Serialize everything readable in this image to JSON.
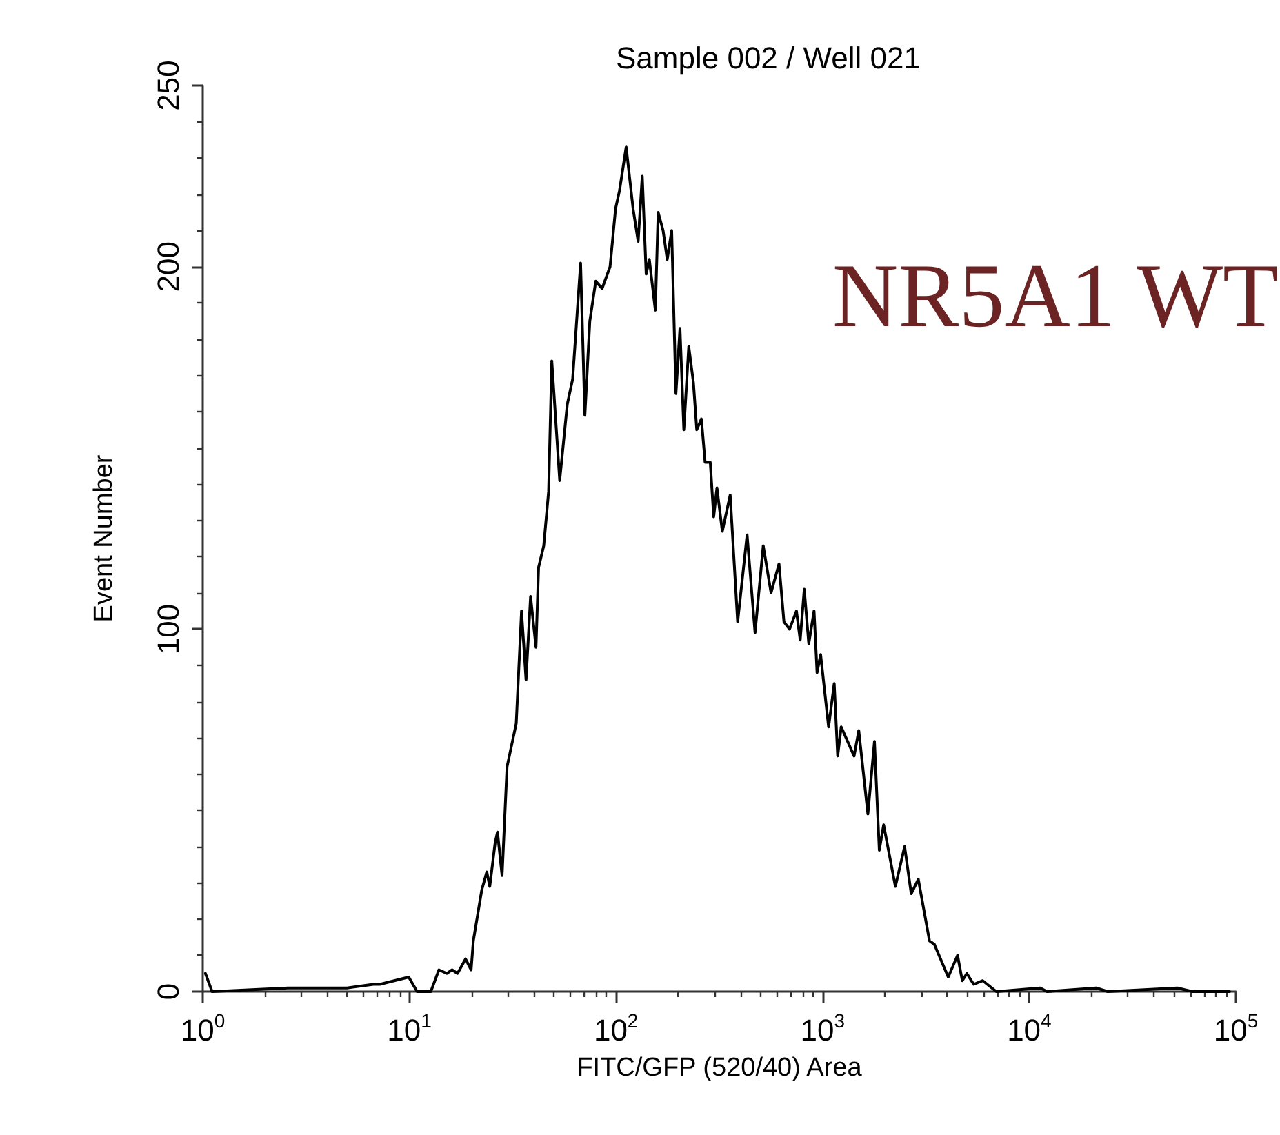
{
  "chart_data": {
    "type": "line",
    "title": "Sample 002 / Well 021",
    "xlabel": "FITC/GFP (520/40) Area",
    "ylabel": "Event Number",
    "annotations": [
      "NR5A1 WT"
    ],
    "log": "x",
    "grid": false,
    "xlim": [
      1,
      100000
    ],
    "ylim": [
      0,
      250
    ],
    "xticks": [
      {
        "value": 1,
        "label": "10$^{0}$"
      },
      {
        "value": 10,
        "label": "10$^{1}$"
      },
      {
        "value": 100,
        "label": "10$^{2}$"
      },
      {
        "value": 1000,
        "label": "10$^{3}$"
      },
      {
        "value": 10000,
        "label": "10$^{4}$"
      },
      {
        "value": 100000,
        "label": "10$^{5}$"
      },
      {
        "value": 2,
        "label": null
      },
      {
        "value": 3,
        "label": null
      },
      {
        "value": 4,
        "label": null
      },
      {
        "value": 5,
        "label": null
      },
      {
        "value": 6,
        "label": null
      },
      {
        "value": 7,
        "label": null
      },
      {
        "value": 8,
        "label": null
      },
      {
        "value": 9,
        "label": null
      },
      {
        "value": 20,
        "label": null
      },
      {
        "value": 30,
        "label": null
      },
      {
        "value": 40,
        "label": null
      },
      {
        "value": 50,
        "label": null
      },
      {
        "value": 60,
        "label": null
      },
      {
        "value": 70,
        "label": null
      },
      {
        "value": 80,
        "label": null
      },
      {
        "value": 90,
        "label": null
      },
      {
        "value": 200,
        "label": null
      },
      {
        "value": 300,
        "label": null
      },
      {
        "value": 400,
        "label": null
      },
      {
        "value": 500,
        "label": null
      },
      {
        "value": 600,
        "label": null
      },
      {
        "value": 700,
        "label": null
      },
      {
        "value": 800,
        "label": null
      },
      {
        "value": 900,
        "label": null
      },
      {
        "value": 2000,
        "label": null
      },
      {
        "value": 3000,
        "label": null
      },
      {
        "value": 4000,
        "label": null
      },
      {
        "value": 5000,
        "label": null
      },
      {
        "value": 6000,
        "label": null
      },
      {
        "value": 7000,
        "label": null
      },
      {
        "value": 8000,
        "label": null
      },
      {
        "value": 9000,
        "label": null
      },
      {
        "value": 20000,
        "label": null
      },
      {
        "value": 30000,
        "label": null
      },
      {
        "value": 40000,
        "label": null
      },
      {
        "value": 50000,
        "label": null
      },
      {
        "value": 60000,
        "label": null
      },
      {
        "value": 70000,
        "label": null
      },
      {
        "value": 80000,
        "label": null
      },
      {
        "value": 90000,
        "label": null
      }
    ],
    "yticks": [
      0,
      {
        "value": 10,
        "label": null
      },
      {
        "value": 20,
        "label": null
      },
      {
        "value": 30,
        "label": null
      },
      {
        "value": 40,
        "label": null
      },
      {
        "value": 50,
        "label": null
      },
      {
        "value": 60,
        "label": null
      },
      {
        "value": 70,
        "label": null
      },
      {
        "value": 80,
        "label": null
      },
      {
        "value": 90,
        "label": null
      },
      100,
      {
        "value": 110,
        "label": null
      },
      {
        "value": 120,
        "label": null
      },
      {
        "value": 130,
        "label": null
      },
      {
        "value": 140,
        "label": null
      },
      {
        "value": 150,
        "label": null
      },
      {
        "value": 160,
        "label": null
      },
      {
        "value": 170,
        "label": null
      },
      {
        "value": 180,
        "label": null
      },
      {
        "value": 190,
        "label": null
      },
      200,
      {
        "value": 210,
        "label": null
      },
      {
        "value": 220,
        "label": null
      },
      {
        "value": 230,
        "label": null
      },
      {
        "value": 240,
        "label": null
      },
      250
    ],
    "series": [
      {
        "color": "#000000",
        "x": [
          1.03,
          1.11,
          2.59,
          3.47,
          4.99,
          6.69,
          7.19,
          9.93,
          10.9,
          12.7,
          13.9,
          15.2,
          16.1,
          17.1,
          18.7,
          19.9,
          20.4,
          22.4,
          23.7,
          24.5,
          26.0,
          26.7,
          28.1,
          29.7,
          32.9,
          34.9,
          36.7,
          38.6,
          41.0,
          42.2,
          44.7,
          47.2,
          48.9,
          53.4,
          58.1,
          61.7,
          67.4,
          70.7,
          74.7,
          79.8,
          85.7,
          93.6,
          99.5,
          104,
          112,
          121,
          128,
          134,
          140,
          145,
          155,
          160,
          169,
          177,
          186,
          195,
          204,
          213,
          225,
          237,
          246,
          259,
          270,
          286,
          297,
          308,
          327,
          357,
          388,
          431,
          471,
          516,
          563,
          615,
          650,
          692,
          747,
          779,
          815,
          857,
          909,
          940,
          978,
          1069,
          1138,
          1183,
          1230,
          1420,
          1496,
          1656,
          1782,
          1881,
          1974,
          2250,
          2494,
          2684,
          2905,
          3290,
          3477,
          4055,
          4498,
          4742,
          4989,
          5383,
          5957,
          6934,
          11300,
          12200,
          21100,
          24000,
          52100,
          61700,
          93300
        ],
        "values": [
          5,
          0,
          1,
          1,
          1,
          2,
          2,
          4,
          0,
          0,
          6,
          5,
          6,
          5,
          9,
          6,
          14,
          28,
          33,
          29,
          41,
          44,
          32,
          62,
          74,
          105,
          86,
          109,
          95,
          117,
          123,
          138,
          174,
          141,
          162,
          169,
          201,
          159,
          185,
          196,
          194,
          200,
          216,
          221,
          233,
          216,
          207,
          225,
          198,
          202,
          188,
          215,
          210,
          202,
          210,
          165,
          183,
          155,
          178,
          168,
          155,
          158,
          146,
          146,
          131,
          139,
          127,
          137,
          102,
          126,
          99,
          123,
          110,
          118,
          102,
          100,
          105,
          97,
          111,
          96,
          105,
          88,
          93,
          73,
          85,
          65,
          73,
          65,
          72,
          49,
          69,
          39,
          46,
          29,
          40,
          27,
          31,
          14,
          13,
          4,
          10,
          3,
          5,
          2,
          3,
          0,
          1,
          0,
          1,
          0,
          1,
          0,
          0
        ]
      }
    ]
  }
}
